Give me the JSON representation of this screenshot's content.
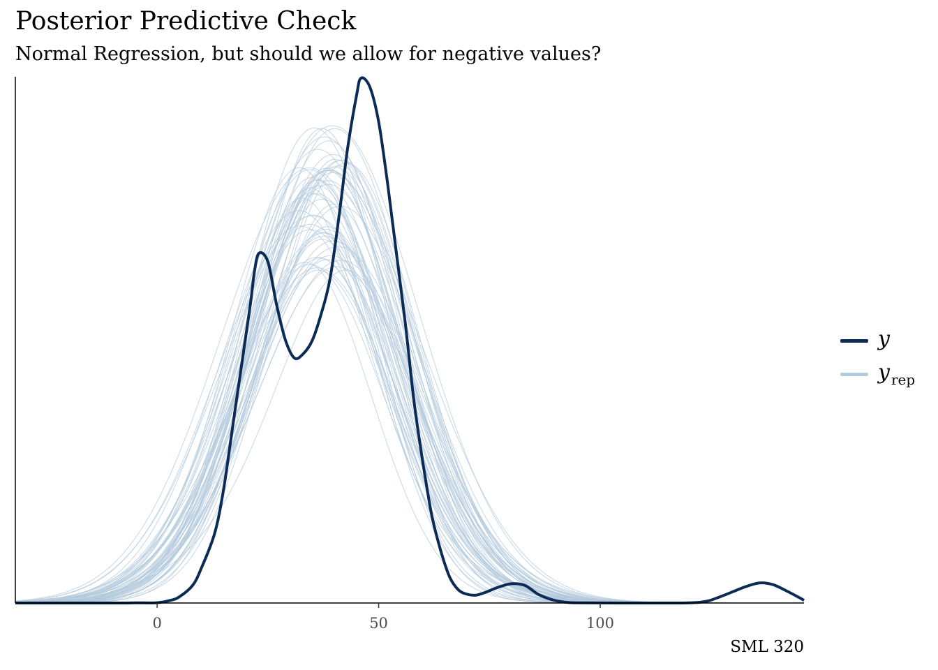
{
  "title": "Posterior Predictive Check",
  "subtitle": "Normal Regression, but should we allow for negative values?",
  "caption": "SML 320",
  "legend": [
    {
      "symbol": "y",
      "sub": "",
      "color": "#0b2a55"
    },
    {
      "symbol": "y",
      "sub": "rep",
      "color": "#b3c9dc"
    }
  ],
  "chart_data": {
    "type": "line",
    "x_ticks": [
      0,
      50,
      100
    ],
    "xlim": [
      -32,
      146
    ],
    "grid": false,
    "legend_position": "right",
    "y_axis_labels": false,
    "series": [
      {
        "name": "y",
        "color": "#0b2a55",
        "points": [
          [
            -32,
            0
          ],
          [
            -10,
            0
          ],
          [
            -5,
            0.02
          ],
          [
            0,
            0.03
          ],
          [
            3,
            0.3
          ],
          [
            5,
            0.7
          ],
          [
            8,
            2
          ],
          [
            10,
            4
          ],
          [
            13,
            8
          ],
          [
            15,
            13
          ],
          [
            17,
            20
          ],
          [
            19,
            27
          ],
          [
            21,
            34
          ],
          [
            22,
            38
          ],
          [
            23,
            40
          ],
          [
            25,
            39
          ],
          [
            27,
            34
          ],
          [
            29,
            30
          ],
          [
            31,
            28
          ],
          [
            33,
            28.5
          ],
          [
            35,
            30
          ],
          [
            37,
            33
          ],
          [
            39,
            37
          ],
          [
            41,
            44
          ],
          [
            43,
            52
          ],
          [
            45,
            58
          ],
          [
            46,
            60
          ],
          [
            48,
            59
          ],
          [
            50,
            55
          ],
          [
            52,
            48
          ],
          [
            54,
            40
          ],
          [
            56,
            32
          ],
          [
            58,
            23
          ],
          [
            60,
            16
          ],
          [
            62,
            10
          ],
          [
            64,
            6
          ],
          [
            66,
            3
          ],
          [
            68,
            1.5
          ],
          [
            70,
            1.0
          ],
          [
            72,
            0.9
          ],
          [
            74,
            1.2
          ],
          [
            77,
            1.8
          ],
          [
            80,
            2.2
          ],
          [
            83,
            2.0
          ],
          [
            86,
            1.0
          ],
          [
            89,
            0.4
          ],
          [
            92,
            0.1
          ],
          [
            96,
            0.02
          ],
          [
            110,
            0
          ],
          [
            120,
            0.02
          ],
          [
            124,
            0.2
          ],
          [
            127,
            0.7
          ],
          [
            130,
            1.3
          ],
          [
            133,
            1.9
          ],
          [
            136,
            2.3
          ],
          [
            139,
            2.1
          ],
          [
            142,
            1.4
          ],
          [
            145,
            0.6
          ],
          [
            146,
            0.3
          ]
        ]
      },
      {
        "name": "y_rep",
        "color": "#b3c9dc",
        "replicates": 60,
        "mean_approx": 38,
        "sd_approx": 17,
        "peak_range": [
          38,
          55
        ]
      }
    ]
  }
}
